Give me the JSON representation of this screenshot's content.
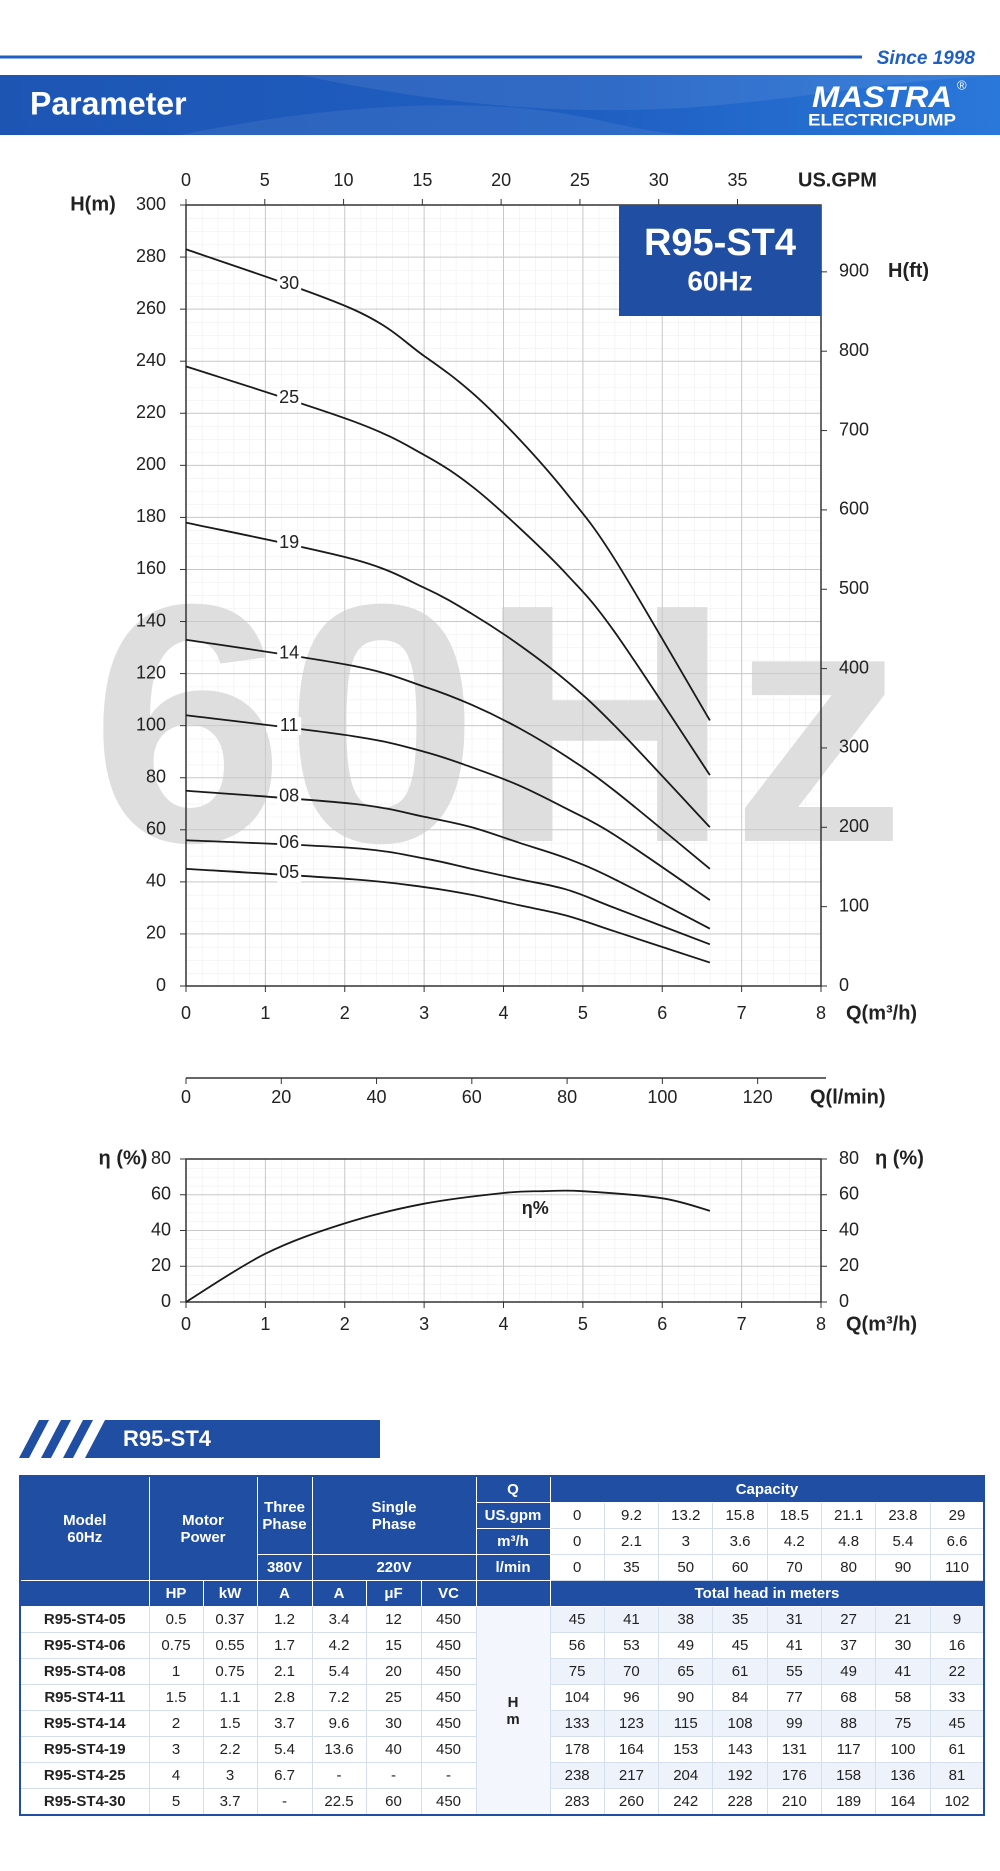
{
  "header": {
    "since": "Since 1998",
    "title": "Parameter",
    "logo": "MASTRA",
    "registered": "®",
    "logo_sub": "ELECTRICPUMP"
  },
  "chart_data": [
    {
      "type": "line",
      "model": "R95-ST4",
      "frequency": "60Hz",
      "watermark": "60Hz",
      "x_label": "Q(m³/h)",
      "y_label": "H(m)",
      "y2_label": "H(ft)",
      "x": [
        0,
        2.1,
        3,
        3.6,
        4.2,
        4.8,
        5.4,
        6.6
      ],
      "xlim": [
        0,
        8
      ],
      "xticks": [
        0,
        1,
        2,
        3,
        4,
        5,
        6,
        7,
        8
      ],
      "ylim": [
        0,
        300
      ],
      "yticks": [
        0,
        20,
        40,
        60,
        80,
        100,
        120,
        140,
        160,
        180,
        200,
        220,
        240,
        260,
        280,
        300
      ],
      "y2lim": [
        0,
        984.25
      ],
      "y2ticks": [
        0,
        100,
        200,
        300,
        400,
        500,
        600,
        700,
        800,
        900
      ],
      "top_axis": {
        "label": "US.GPM",
        "lim": [
          0,
          40.3
        ],
        "ticks": [
          0,
          5,
          10,
          15,
          20,
          25,
          30,
          35
        ]
      },
      "bottom_axis": {
        "label": "Q(l/min)",
        "lim": [
          0,
          133.3
        ],
        "ticks": [
          0,
          20,
          40,
          60,
          80,
          100,
          120
        ]
      },
      "grid": true,
      "series": [
        {
          "name": "05",
          "color": "#1a1a1a",
          "values": [
            45,
            41,
            38,
            35,
            31,
            27,
            21,
            9
          ]
        },
        {
          "name": "06",
          "color": "#1a1a1a",
          "values": [
            56,
            53,
            49,
            45,
            41,
            37,
            30,
            16
          ]
        },
        {
          "name": "08",
          "color": "#1a1a1a",
          "values": [
            75,
            70,
            65,
            61,
            55,
            49,
            41,
            22
          ]
        },
        {
          "name": "11",
          "color": "#1a1a1a",
          "values": [
            104,
            96,
            90,
            84,
            77,
            68,
            58,
            33
          ]
        },
        {
          "name": "14",
          "color": "#1a1a1a",
          "values": [
            133,
            123,
            115,
            108,
            99,
            88,
            75,
            45
          ]
        },
        {
          "name": "19",
          "color": "#1a1a1a",
          "values": [
            178,
            164,
            153,
            143,
            131,
            117,
            100,
            61
          ]
        },
        {
          "name": "25",
          "color": "#1a1a1a",
          "values": [
            238,
            217,
            204,
            192,
            176,
            158,
            136,
            81
          ]
        },
        {
          "name": "30",
          "color": "#1a1a1a",
          "values": [
            283,
            260,
            242,
            228,
            210,
            189,
            164,
            102
          ]
        }
      ]
    },
    {
      "type": "line",
      "x_label": "Q(m³/h)",
      "y_label": "η (%)",
      "y2_label": "η (%)",
      "x": [
        0,
        1,
        2,
        3,
        4,
        4.5,
        5,
        6,
        6.6
      ],
      "xlim": [
        0,
        8
      ],
      "xticks": [
        0,
        1,
        2,
        3,
        4,
        5,
        6,
        7,
        8
      ],
      "ylim": [
        0,
        80
      ],
      "yticks": [
        0,
        20,
        40,
        60,
        80
      ],
      "y2lim": [
        0,
        80
      ],
      "y2ticks": [
        0,
        20,
        40,
        60,
        80
      ],
      "grid": true,
      "series": [
        {
          "name": "η%",
          "color": "#1a1a1a",
          "values": [
            0,
            27,
            44,
            55,
            61,
            62,
            62,
            58,
            51
          ]
        }
      ]
    }
  ],
  "table": {
    "title": "R95-ST4",
    "header": {
      "model": [
        "Model",
        "60Hz"
      ],
      "motor_power": "Motor Power",
      "three_phase": "Three Phase",
      "single_phase": "Single Phase",
      "q": "Q",
      "capacity": "Capacity",
      "three_phase_voltage": "380V",
      "single_phase_voltage": "220V",
      "spec_units": [
        "HP",
        "kW",
        "A",
        "A",
        "μF",
        "VC"
      ],
      "total_head": "Total head in meters",
      "head_unit": [
        "H",
        "m"
      ]
    },
    "capacity": [
      {
        "unit": "US.gpm",
        "values": [
          0,
          9.2,
          13.2,
          15.8,
          18.5,
          21.1,
          23.8,
          29
        ]
      },
      {
        "unit": "m³/h",
        "values": [
          0,
          2.1,
          3,
          3.6,
          4.2,
          4.8,
          5.4,
          6.6
        ]
      },
      {
        "unit": "l/min",
        "values": [
          0,
          35,
          50,
          60,
          70,
          80,
          90,
          110
        ]
      }
    ],
    "rows": [
      {
        "model": "R95-ST4-05",
        "specs": [
          0.5,
          0.37,
          1.2,
          3.4,
          12,
          450
        ],
        "heads": [
          45,
          41,
          38,
          35,
          31,
          27,
          21,
          9
        ]
      },
      {
        "model": "R95-ST4-06",
        "specs": [
          0.75,
          0.55,
          1.7,
          4.2,
          15,
          450
        ],
        "heads": [
          56,
          53,
          49,
          45,
          41,
          37,
          30,
          16
        ]
      },
      {
        "model": "R95-ST4-08",
        "specs": [
          1,
          0.75,
          2.1,
          5.4,
          20,
          450
        ],
        "heads": [
          75,
          70,
          65,
          61,
          55,
          49,
          41,
          22
        ]
      },
      {
        "model": "R95-ST4-11",
        "specs": [
          1.5,
          1.1,
          2.8,
          7.2,
          25,
          450
        ],
        "heads": [
          104,
          96,
          90,
          84,
          77,
          68,
          58,
          33
        ]
      },
      {
        "model": "R95-ST4-14",
        "specs": [
          2,
          1.5,
          3.7,
          9.6,
          30,
          450
        ],
        "heads": [
          133,
          123,
          115,
          108,
          99,
          88,
          75,
          45
        ]
      },
      {
        "model": "R95-ST4-19",
        "specs": [
          3,
          2.2,
          5.4,
          13.6,
          40,
          450
        ],
        "heads": [
          178,
          164,
          153,
          143,
          131,
          117,
          100,
          61
        ]
      },
      {
        "model": "R95-ST4-25",
        "specs": [
          4,
          3,
          6.7,
          "-",
          "-",
          "-"
        ],
        "heads": [
          238,
          217,
          204,
          192,
          176,
          158,
          136,
          81
        ]
      },
      {
        "model": "R95-ST4-30",
        "specs": [
          5,
          3.7,
          "-",
          22.5,
          60,
          450
        ],
        "heads": [
          283,
          260,
          242,
          228,
          210,
          189,
          164,
          102
        ]
      }
    ]
  }
}
